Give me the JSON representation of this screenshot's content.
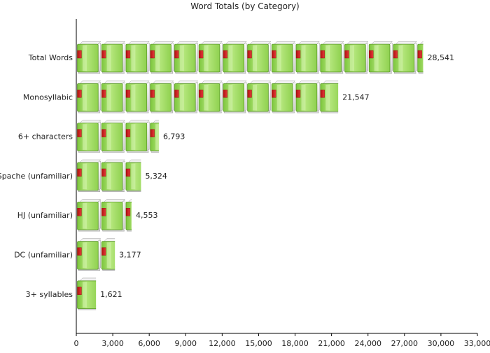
{
  "chart_data": {
    "type": "bar",
    "orientation": "horizontal",
    "title": "Word Totals (by Category)",
    "xlabel": "",
    "ylabel": "",
    "categories": [
      "Total Words",
      "Monosyllabic",
      "6+ characters",
      "Spache (unfamiliar)",
      "HJ (unfamiliar)",
      "DC (unfamiliar)",
      "3+ syllables"
    ],
    "values": [
      28541,
      21547,
      6793,
      5324,
      4553,
      3177,
      1621
    ],
    "value_labels": [
      "28,541",
      "21,547",
      "6,793",
      "5,324",
      "4,553",
      "3,177",
      "1,621"
    ],
    "xlim": [
      0,
      33000
    ],
    "ticks": [
      0,
      3000,
      6000,
      9000,
      12000,
      15000,
      18000,
      21000,
      24000,
      27000,
      30000,
      33000
    ],
    "tick_labels": [
      "0",
      "3,000",
      "6,000",
      "9,000",
      "12,000",
      "15,000",
      "18,000",
      "21,000",
      "24,000",
      "27,000",
      "30,000",
      "33,000"
    ],
    "unit_per_book": 2000,
    "grid": false,
    "legend": "none",
    "bar_icon": "green-book-icon",
    "colors": {
      "book_cover": "#8fd14f",
      "book_cover_light": "#c9ef9a",
      "book_spine": "#d42020",
      "book_pages": "#e6e6e6",
      "axis": "#000000"
    }
  }
}
